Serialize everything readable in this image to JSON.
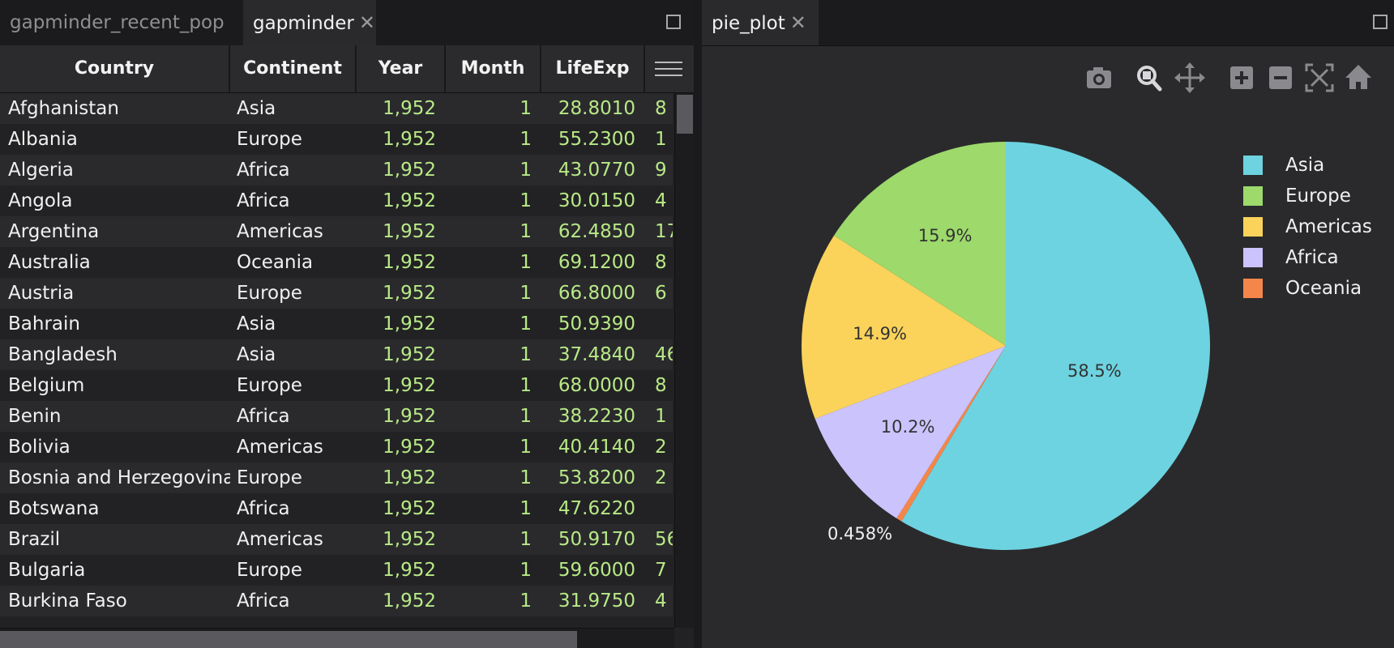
{
  "left_tabs": [
    {
      "label": "gapminder_recent_pop",
      "active": false
    },
    {
      "label": "gapminder",
      "active": true
    }
  ],
  "right_tabs": [
    {
      "label": "pie_plot",
      "active": true
    }
  ],
  "close_glyph": "✕",
  "grid": {
    "columns": [
      "Country",
      "Continent",
      "Year",
      "Month",
      "LifeExp"
    ],
    "rows": [
      {
        "country": "Afghanistan",
        "continent": "Asia",
        "year": "1,952",
        "month": "1",
        "lifeexp": "28.8010",
        "next": "8"
      },
      {
        "country": "Albania",
        "continent": "Europe",
        "year": "1,952",
        "month": "1",
        "lifeexp": "55.2300",
        "next": "1"
      },
      {
        "country": "Algeria",
        "continent": "Africa",
        "year": "1,952",
        "month": "1",
        "lifeexp": "43.0770",
        "next": "9"
      },
      {
        "country": "Angola",
        "continent": "Africa",
        "year": "1,952",
        "month": "1",
        "lifeexp": "30.0150",
        "next": "4"
      },
      {
        "country": "Argentina",
        "continent": "Americas",
        "year": "1,952",
        "month": "1",
        "lifeexp": "62.4850",
        "next": "17"
      },
      {
        "country": "Australia",
        "continent": "Oceania",
        "year": "1,952",
        "month": "1",
        "lifeexp": "69.1200",
        "next": "8"
      },
      {
        "country": "Austria",
        "continent": "Europe",
        "year": "1,952",
        "month": "1",
        "lifeexp": "66.8000",
        "next": "6"
      },
      {
        "country": "Bahrain",
        "continent": "Asia",
        "year": "1,952",
        "month": "1",
        "lifeexp": "50.9390",
        "next": ""
      },
      {
        "country": "Bangladesh",
        "continent": "Asia",
        "year": "1,952",
        "month": "1",
        "lifeexp": "37.4840",
        "next": "46"
      },
      {
        "country": "Belgium",
        "continent": "Europe",
        "year": "1,952",
        "month": "1",
        "lifeexp": "68.0000",
        "next": "8"
      },
      {
        "country": "Benin",
        "continent": "Africa",
        "year": "1,952",
        "month": "1",
        "lifeexp": "38.2230",
        "next": "1"
      },
      {
        "country": "Bolivia",
        "continent": "Americas",
        "year": "1,952",
        "month": "1",
        "lifeexp": "40.4140",
        "next": "2"
      },
      {
        "country": "Bosnia and Herzegovina",
        "continent": "Europe",
        "year": "1,952",
        "month": "1",
        "lifeexp": "53.8200",
        "next": "2"
      },
      {
        "country": "Botswana",
        "continent": "Africa",
        "year": "1,952",
        "month": "1",
        "lifeexp": "47.6220",
        "next": ""
      },
      {
        "country": "Brazil",
        "continent": "Americas",
        "year": "1,952",
        "month": "1",
        "lifeexp": "50.9170",
        "next": "56"
      },
      {
        "country": "Bulgaria",
        "continent": "Europe",
        "year": "1,952",
        "month": "1",
        "lifeexp": "59.6000",
        "next": "7"
      },
      {
        "country": "Burkina Faso",
        "continent": "Africa",
        "year": "1,952",
        "month": "1",
        "lifeexp": "31.9750",
        "next": "4"
      }
    ]
  },
  "modebar": [
    "camera-icon",
    "zoom-icon",
    "pan-icon",
    "zoom-in-icon",
    "zoom-out-icon",
    "autoscale-icon",
    "reset-home-icon"
  ],
  "chart_data": {
    "type": "pie",
    "direction": "clockwise",
    "start_angle_deg": 0,
    "slices": [
      {
        "label": "Asia",
        "value": 58.5,
        "display": "58.5%",
        "color": "#6dd3e0"
      },
      {
        "label": "Oceania",
        "value": 0.458,
        "display": "0.458%",
        "color": "#f5864a"
      },
      {
        "label": "Africa",
        "value": 10.2,
        "display": "10.2%",
        "color": "#cbc3fc"
      },
      {
        "label": "Americas",
        "value": 14.9,
        "display": "14.9%",
        "color": "#fbd35a"
      },
      {
        "label": "Europe",
        "value": 15.9,
        "display": "15.9%",
        "color": "#9dd96b"
      }
    ],
    "legend": [
      "Asia",
      "Europe",
      "Americas",
      "Africa",
      "Oceania"
    ],
    "legend_placement": "top-right"
  }
}
